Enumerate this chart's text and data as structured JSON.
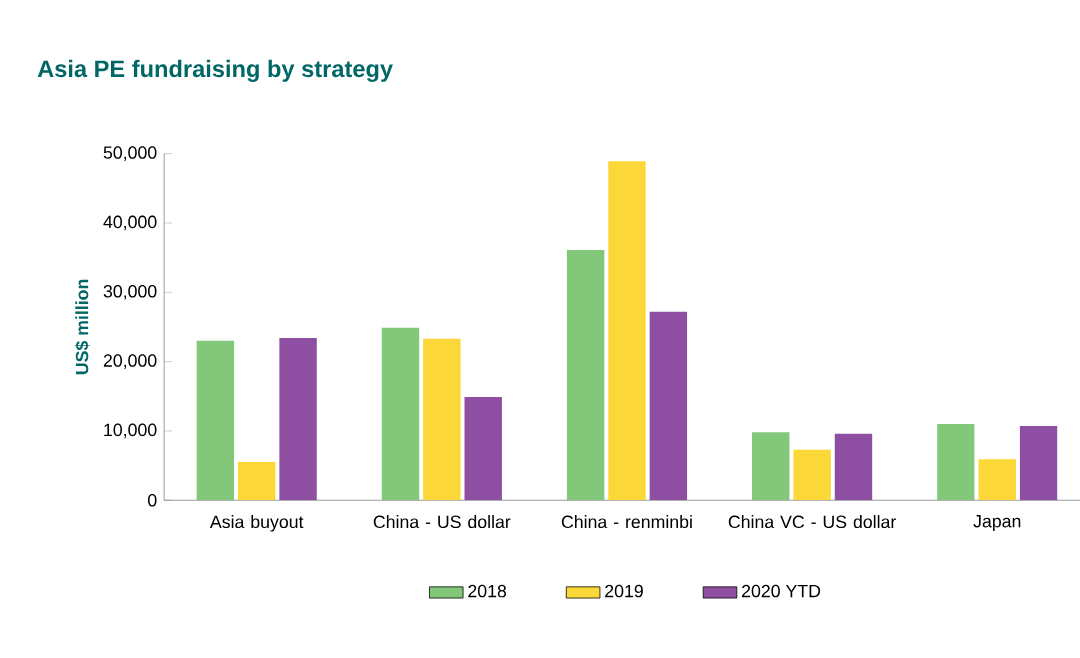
{
  "chart_data": {
    "type": "bar",
    "title": "Asia PE fundraising by strategy",
    "ylabel": "US$ million",
    "categories": [
      "Asia buyout",
      "China - US dollar",
      "China - renminbi",
      "China VC - US dollar",
      "Japan"
    ],
    "series": [
      {
        "name": "2018",
        "color": "#82c77a",
        "values": [
          23000,
          24900,
          36100,
          9800,
          11000
        ]
      },
      {
        "name": "2019",
        "color": "#fbd837",
        "values": [
          5500,
          23300,
          48900,
          7300,
          5900
        ]
      },
      {
        "name": "2020 YTD",
        "color": "#8e4fa3",
        "values": [
          23400,
          14900,
          27200,
          9600,
          10700
        ]
      }
    ],
    "ylim": [
      0,
      50000
    ],
    "yticks": [
      {
        "value": 0,
        "label": "0"
      },
      {
        "value": 10000,
        "label": "10,000"
      },
      {
        "value": 20000,
        "label": "20,000"
      },
      {
        "value": 30000,
        "label": "30,000"
      },
      {
        "value": 40000,
        "label": "40,000"
      },
      {
        "value": 50000,
        "label": "50,000"
      }
    ],
    "grid": false,
    "legend": "bottom"
  }
}
